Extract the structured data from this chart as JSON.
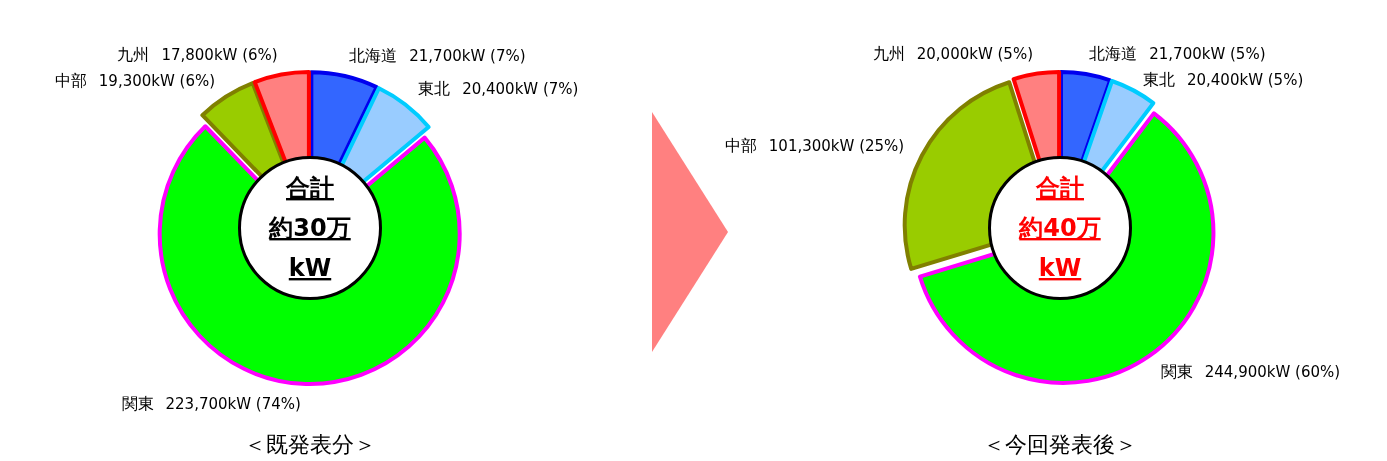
{
  "chart_data": [
    {
      "type": "donut",
      "title": "＜既発表分＞",
      "categories": [
        "北海道",
        "東北",
        "関東",
        "中部",
        "九州"
      ],
      "values": [
        21700,
        20400,
        223700,
        19300,
        17800
      ],
      "colors": [
        "#3366ff",
        "#99ccff",
        "#00ff00",
        "#99cc00",
        "#ff8080"
      ],
      "value_labels": [
        "21,700kW (7%)",
        "20,400kW (7%)",
        "223,700kW (74%)",
        "19,300kW (6%)",
        "17,800kW (6%)"
      ],
      "annotations": [
        "合計",
        "約30万",
        "kW"
      ],
      "legend": false
    },
    {
      "type": "donut",
      "title": "＜今回発表後＞",
      "categories": [
        "北海道",
        "東北",
        "関東",
        "中部",
        "九州"
      ],
      "values": [
        21700,
        20400,
        244900,
        101300,
        20000
      ],
      "colors": [
        "#3366ff",
        "#99ccff",
        "#00ff00",
        "#99cc00",
        "#ff8080"
      ],
      "value_labels": [
        "21,700kW (5%)",
        "20,400kW (5%)",
        "244,900kW (60%)",
        "101,300kW (25%)",
        "20,000kW (5%)"
      ],
      "annotations": [
        "合計",
        "約40万",
        "kW"
      ],
      "legend": false
    }
  ]
}
